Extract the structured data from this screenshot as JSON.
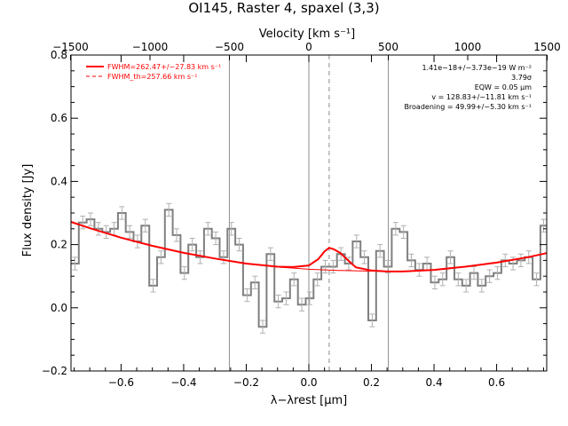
{
  "chart_data": {
    "type": "line",
    "title": "OI145, Raster 4, spaxel (3,3)",
    "xlabel": "λ−λrest [μm]",
    "ylabel": "Flux density [Jy]",
    "top_xlabel": "Velocity [km s⁻¹]",
    "xlim": [
      -0.76,
      0.76
    ],
    "ylim": [
      -0.2,
      0.8
    ],
    "x_ticks": [
      "−0.6",
      "−0.4",
      "−0.2",
      "0.0",
      "0.2",
      "0.4",
      "0.6"
    ],
    "x_tick_values": [
      -0.6,
      -0.4,
      -0.2,
      0.0,
      0.2,
      0.4,
      0.6
    ],
    "y_ticks": [
      "−0.2",
      "0.0",
      "0.2",
      "0.4",
      "0.6",
      "0.8"
    ],
    "y_tick_values": [
      -0.2,
      0.0,
      0.2,
      0.4,
      0.6,
      0.8
    ],
    "top_ticks": [
      "−1500",
      "−1000",
      "−500",
      "0",
      "500",
      "1000",
      "1500"
    ],
    "top_tick_values": [
      -1500,
      -1000,
      -500,
      0,
      500,
      1000,
      1500
    ],
    "velocity_per_micron": 1970,
    "grid": false,
    "legend_position": "top-left",
    "legend": [
      {
        "label": "FWHM=262.47+/−27.83 km s⁻¹",
        "style": "solid",
        "color": "#ff0000"
      },
      {
        "label": "FWHM_th=257.66 km s⁻¹",
        "style": "dashed",
        "color": "#ff0000"
      }
    ],
    "annotations": [
      "1.41e−18+/−3.73e−19 W m⁻²",
      "3.79σ",
      "EQW = 0.05 μm",
      "v = 128.83+/−11.81 km s⁻¹",
      "Broadening = 49.99+/−5.30 km s⁻¹"
    ],
    "vertical_lines": [
      {
        "x": -0.254,
        "style": "solid"
      },
      {
        "x": 0.0,
        "style": "solid"
      },
      {
        "x": 0.254,
        "style": "solid"
      },
      {
        "x": 0.065,
        "style": "dashed"
      }
    ],
    "series": [
      {
        "kind": "step",
        "color": "#808080",
        "x": [
          -0.76,
          -0.735,
          -0.71,
          -0.685,
          -0.66,
          -0.635,
          -0.61,
          -0.585,
          -0.56,
          -0.535,
          -0.51,
          -0.485,
          -0.46,
          -0.435,
          -0.41,
          -0.385,
          -0.36,
          -0.335,
          -0.31,
          -0.285,
          -0.26,
          -0.235,
          -0.21,
          -0.185,
          -0.16,
          -0.135,
          -0.11,
          -0.085,
          -0.06,
          -0.035,
          -0.01,
          0.015,
          0.04,
          0.065,
          0.09,
          0.115,
          0.14,
          0.165,
          0.19,
          0.215,
          0.24,
          0.265,
          0.29,
          0.315,
          0.34,
          0.365,
          0.39,
          0.415,
          0.44,
          0.465,
          0.49,
          0.515,
          0.54,
          0.565,
          0.59,
          0.615,
          0.64,
          0.665,
          0.69,
          0.715,
          0.74
        ],
        "y": [
          0.14,
          0.27,
          0.28,
          0.25,
          0.24,
          0.25,
          0.3,
          0.24,
          0.21,
          0.26,
          0.07,
          0.16,
          0.31,
          0.23,
          0.11,
          0.2,
          0.16,
          0.25,
          0.22,
          0.16,
          0.25,
          0.2,
          0.04,
          0.08,
          -0.06,
          0.17,
          0.02,
          0.03,
          0.09,
          0.01,
          0.03,
          0.09,
          0.13,
          0.13,
          0.17,
          0.14,
          0.21,
          0.16,
          -0.04,
          0.18,
          0.13,
          0.25,
          0.24,
          0.15,
          0.12,
          0.14,
          0.08,
          0.09,
          0.16,
          0.09,
          0.07,
          0.11,
          0.07,
          0.1,
          0.11,
          0.15,
          0.14,
          0.15,
          0.16,
          0.09,
          0.26
        ],
        "errors": [
          0.02,
          0.02,
          0.02,
          0.02,
          0.02,
          0.02,
          0.02,
          0.02,
          0.02,
          0.02,
          0.02,
          0.02,
          0.02,
          0.02,
          0.02,
          0.02,
          0.02,
          0.02,
          0.02,
          0.02,
          0.02,
          0.02,
          0.02,
          0.02,
          0.02,
          0.02,
          0.02,
          0.02,
          0.02,
          0.02,
          0.02,
          0.02,
          0.02,
          0.02,
          0.02,
          0.02,
          0.02,
          0.02,
          0.02,
          0.02,
          0.02,
          0.02,
          0.02,
          0.02,
          0.02,
          0.02,
          0.02,
          0.02,
          0.02,
          0.02,
          0.02,
          0.02,
          0.02,
          0.02,
          0.02,
          0.02,
          0.02,
          0.02,
          0.02,
          0.02,
          0.02
        ]
      },
      {
        "kind": "line",
        "name": "FWHM=262.47+/−27.83 km s⁻¹",
        "color": "#ff0000",
        "width": 2,
        "x": [
          -0.76,
          -0.7,
          -0.6,
          -0.5,
          -0.4,
          -0.3,
          -0.2,
          -0.1,
          -0.05,
          0.0,
          0.03,
          0.05,
          0.065,
          0.08,
          0.1,
          0.12,
          0.15,
          0.2,
          0.25,
          0.3,
          0.4,
          0.5,
          0.6,
          0.7,
          0.76
        ],
        "y": [
          0.272,
          0.252,
          0.222,
          0.196,
          0.174,
          0.156,
          0.14,
          0.13,
          0.129,
          0.134,
          0.154,
          0.178,
          0.19,
          0.185,
          0.174,
          0.155,
          0.128,
          0.118,
          0.115,
          0.115,
          0.12,
          0.13,
          0.143,
          0.16,
          0.173
        ]
      },
      {
        "kind": "line",
        "name": "FWHM_th=257.66 km s⁻¹",
        "color": "#ff0000",
        "width": 1,
        "x": [
          -0.76,
          -0.7,
          -0.6,
          -0.5,
          -0.4,
          -0.3,
          -0.2,
          -0.1,
          0.0,
          0.1,
          0.2,
          0.25,
          0.3,
          0.4,
          0.5,
          0.6,
          0.7,
          0.76
        ],
        "y": [
          0.272,
          0.252,
          0.222,
          0.196,
          0.174,
          0.156,
          0.14,
          0.129,
          0.122,
          0.118,
          0.116,
          0.115,
          0.115,
          0.12,
          0.13,
          0.143,
          0.16,
          0.173
        ]
      }
    ]
  }
}
